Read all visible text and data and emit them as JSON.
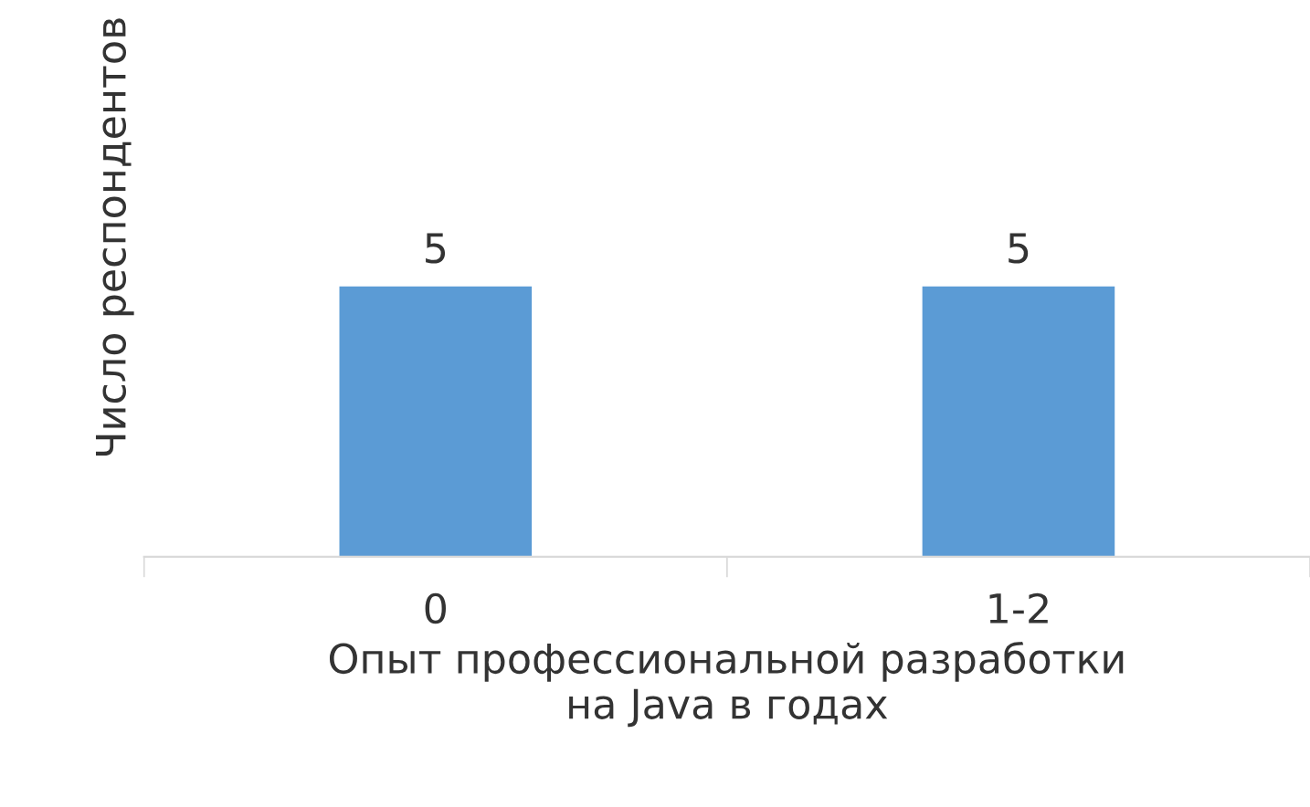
{
  "chart_data": {
    "type": "bar",
    "xlabel": "Опыт профессиональной разработки\nна Java в годах",
    "ylabel": "Число респондентов",
    "categories": [
      "0",
      "1-2"
    ],
    "values": [
      5,
      5
    ],
    "color": "#5b9bd5",
    "data_labels": true,
    "grid": false,
    "legend": false,
    "tick_labels": "x"
  }
}
